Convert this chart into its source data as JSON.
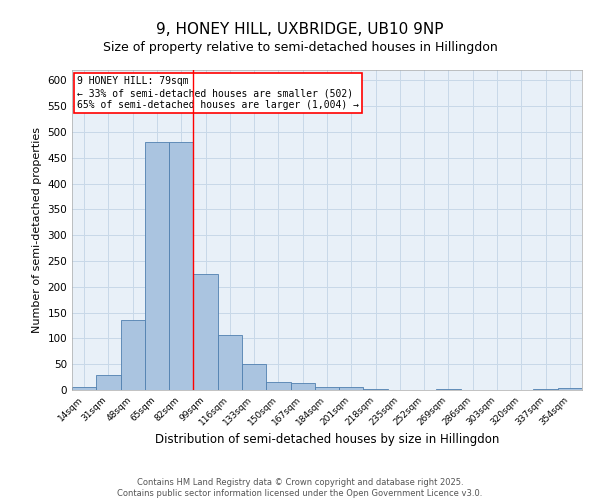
{
  "title1": "9, HONEY HILL, UXBRIDGE, UB10 9NP",
  "title2": "Size of property relative to semi-detached houses in Hillingdon",
  "categories": [
    "14sqm",
    "31sqm",
    "48sqm",
    "65sqm",
    "82sqm",
    "99sqm",
    "116sqm",
    "133sqm",
    "150sqm",
    "167sqm",
    "184sqm",
    "201sqm",
    "218sqm",
    "235sqm",
    "252sqm",
    "269sqm",
    "286sqm",
    "303sqm",
    "320sqm",
    "337sqm",
    "354sqm"
  ],
  "values": [
    5,
    29,
    135,
    480,
    480,
    225,
    107,
    51,
    16,
    14,
    5,
    5,
    2,
    0,
    0,
    2,
    0,
    0,
    0,
    2,
    3
  ],
  "bar_color": "#aac4e0",
  "bar_edge_color": "#5080b0",
  "bar_edge_width": 0.6,
  "xlabel": "Distribution of semi-detached houses by size in Hillingdon",
  "ylabel": "Number of semi-detached properties",
  "ylim": [
    0,
    620
  ],
  "yticks": [
    0,
    50,
    100,
    150,
    200,
    250,
    300,
    350,
    400,
    450,
    500,
    550,
    600
  ],
  "grid_color": "#c8d8e8",
  "bg_color": "#e8f0f8",
  "red_line_x": 4.5,
  "annotation_title": "9 HONEY HILL: 79sqm",
  "annotation_line1": "← 33% of semi-detached houses are smaller (502)",
  "annotation_line2": "65% of semi-detached houses are larger (1,004) →",
  "footer1": "Contains HM Land Registry data © Crown copyright and database right 2025.",
  "footer2": "Contains public sector information licensed under the Open Government Licence v3.0.",
  "title1_fontsize": 11,
  "title2_fontsize": 9,
  "xlabel_fontsize": 8.5,
  "ylabel_fontsize": 8
}
